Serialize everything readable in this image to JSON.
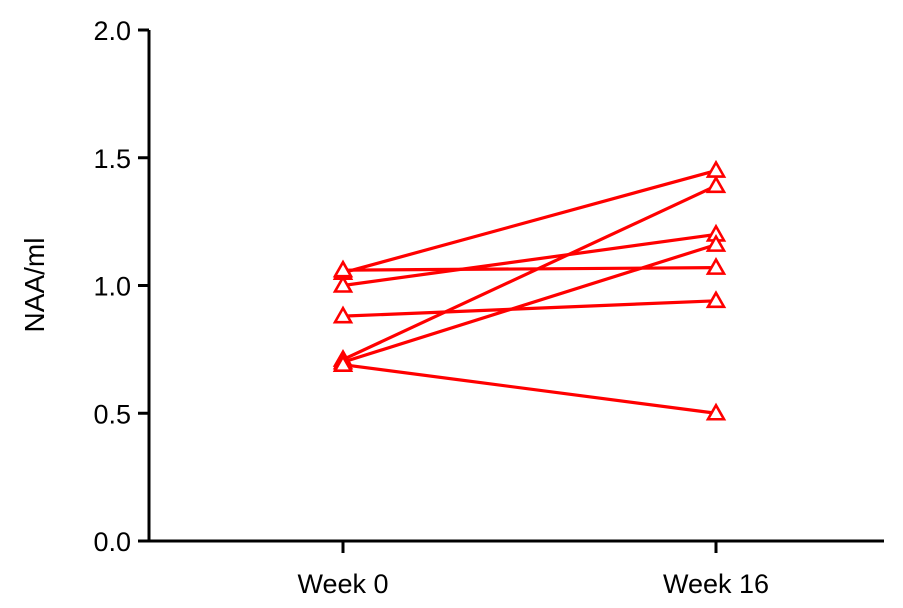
{
  "chart_data": {
    "type": "line",
    "title": "",
    "xlabel": "",
    "ylabel": "NAA/ml",
    "categories": [
      "Week 0",
      "Week 16"
    ],
    "ylim": [
      0,
      2.0
    ],
    "yticks": [
      "0.0",
      "0.5",
      "1.0",
      "1.5",
      "2.0"
    ],
    "grid": false,
    "marker": "triangle-open",
    "color": "#ff0000",
    "series": [
      {
        "values": [
          1.05,
          1.45
        ]
      },
      {
        "values": [
          1.06,
          1.07
        ]
      },
      {
        "values": [
          1.0,
          1.2
        ]
      },
      {
        "values": [
          0.88,
          0.94
        ]
      },
      {
        "values": [
          0.71,
          1.39
        ]
      },
      {
        "values": [
          0.7,
          1.16
        ]
      },
      {
        "values": [
          0.69,
          0.5
        ]
      }
    ]
  }
}
